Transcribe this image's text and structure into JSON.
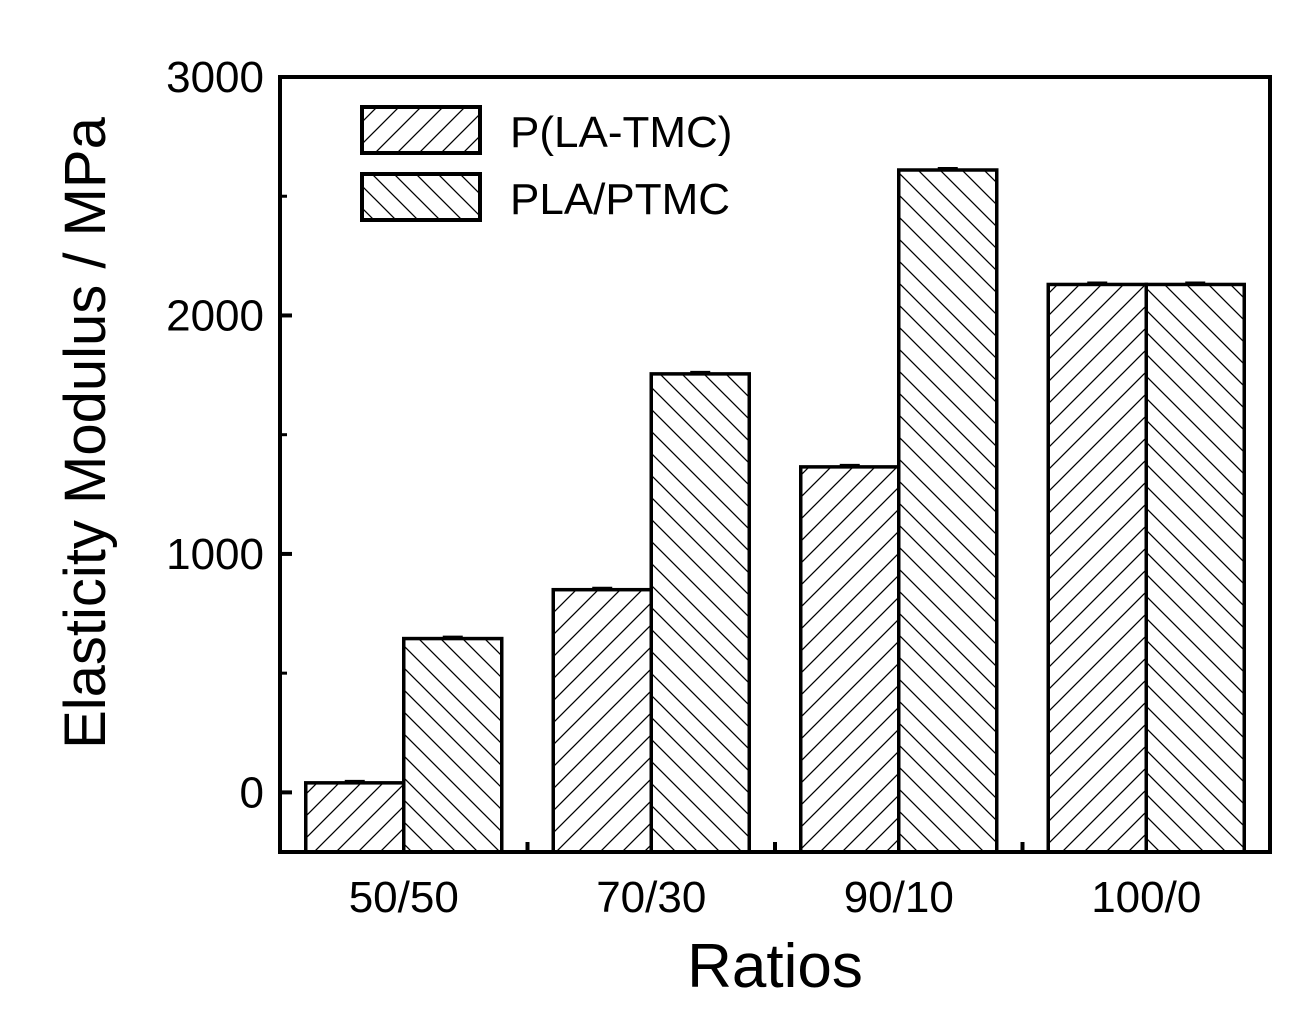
{
  "chart_data": {
    "type": "bar",
    "title": "",
    "xlabel": "Ratios",
    "ylabel": "Elasticity Modulus / MPa",
    "categories": [
      "50/50",
      "70/30",
      "90/10",
      "100/0"
    ],
    "series": [
      {
        "name": "P(LA-TMC)",
        "values": [
          40,
          850,
          1365,
          2130
        ],
        "pattern": "forward-diagonal-hatch"
      },
      {
        "name": "PLA/PTMC",
        "values": [
          645,
          1755,
          2610,
          2130
        ],
        "pattern": "backward-diagonal-hatch"
      }
    ],
    "ylim": [
      -250,
      3000
    ],
    "yticks": [
      0,
      1000,
      2000,
      3000
    ],
    "yticks_minor": [
      500,
      1500,
      2500
    ],
    "error_bars": true,
    "grid": false,
    "legend_position": "top-left",
    "colors": {
      "bar_fill": "#ffffff",
      "hatch": "#000000",
      "stroke": "#000000"
    }
  }
}
